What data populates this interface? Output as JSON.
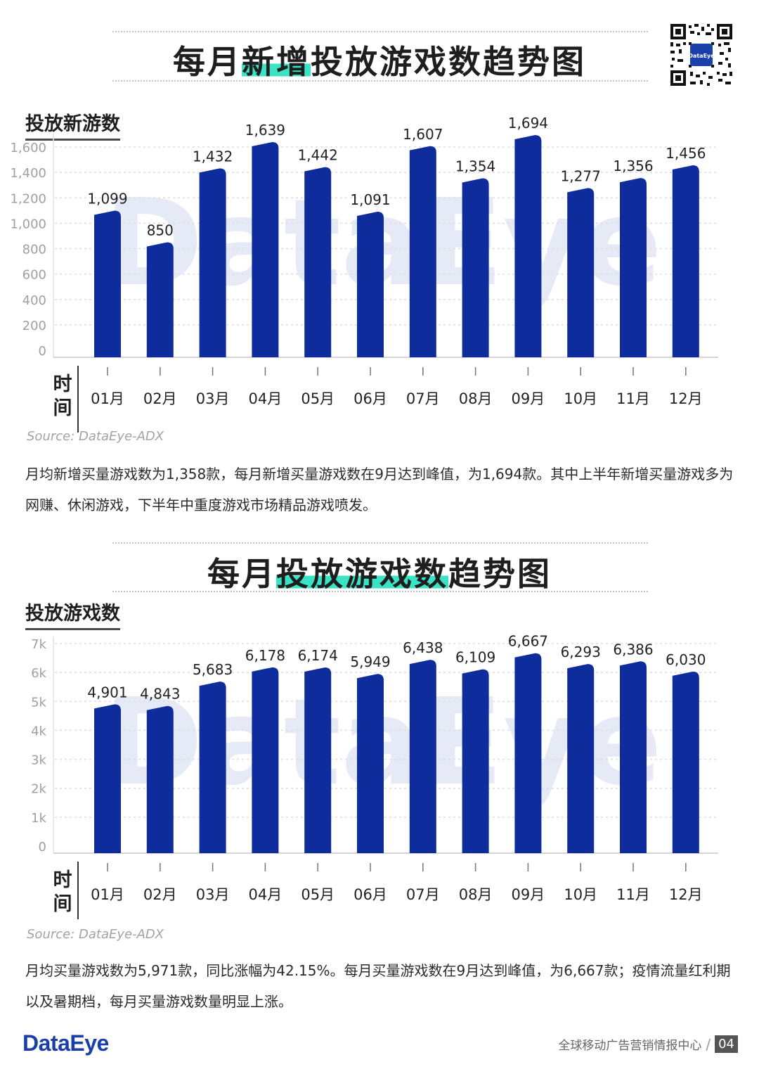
{
  "charts_header": {
    "top_title_pre": "每月",
    "top_title_hl": "新增",
    "top_title_post": "投放游戏数趋势图",
    "bottom_title_pre": "每月",
    "bottom_title_hl": "投放游戏数",
    "bottom_title_post": "趋势图"
  },
  "chart_data": [
    {
      "type": "bar",
      "title": "投放新游数",
      "xlabel": "时间",
      "ylabel": "",
      "categories": [
        "01月",
        "02月",
        "03月",
        "04月",
        "05月",
        "06月",
        "07月",
        "08月",
        "09月",
        "10月",
        "11月",
        "12月"
      ],
      "values": [
        1099,
        850,
        1432,
        1639,
        1442,
        1091,
        1607,
        1354,
        1694,
        1277,
        1356,
        1456
      ],
      "value_labels": [
        "1,099",
        "850",
        "1,432",
        "1,639",
        "1,442",
        "1,091",
        "1,607",
        "1,354",
        "1,694",
        "1,277",
        "1,356",
        "1,456"
      ],
      "yticks": [
        0,
        200,
        400,
        600,
        800,
        1000,
        1200,
        1400,
        1600
      ],
      "ytick_labels": [
        "0",
        "200",
        "400",
        "600",
        "800",
        "1,000",
        "1,200",
        "1,400",
        "1,600"
      ],
      "ylim": [
        0,
        1650
      ],
      "source": "Source: DataEye-ADX",
      "watermark": "DataEye"
    },
    {
      "type": "bar",
      "title": "投放游戏数",
      "xlabel": "时间",
      "ylabel": "",
      "categories": [
        "01月",
        "02月",
        "03月",
        "04月",
        "05月",
        "06月",
        "07月",
        "08月",
        "09月",
        "10月",
        "11月",
        "12月"
      ],
      "values": [
        4901,
        4843,
        5683,
        6178,
        6174,
        5949,
        6438,
        6109,
        6667,
        6293,
        6386,
        6030
      ],
      "value_labels": [
        "4,901",
        "4,843",
        "5,683",
        "6,178",
        "6,174",
        "5,949",
        "6,438",
        "6,109",
        "6,667",
        "6,293",
        "6,386",
        "6,030"
      ],
      "yticks": [
        0,
        1000,
        2000,
        3000,
        4000,
        5000,
        6000,
        7000
      ],
      "ytick_labels": [
        "0",
        "1k",
        "2k",
        "3k",
        "4k",
        "5k",
        "6k",
        "7k"
      ],
      "ylim": [
        0,
        7000
      ],
      "source": "Source: DataEye-ADX",
      "watermark": "DataEye"
    }
  ],
  "descriptions": {
    "chart1": "月均新增买量游戏数为1,358款，每月新增买量游戏数在9月达到峰值，为1,694款。其中上半年新增买量游戏多为网赚、休闲游戏，下半年中重度游戏市场精品游戏喷发。",
    "chart2": "月均买量游戏数为5,971款，同比涨幅为42.15%。每月买量游戏数在9月达到峰值，为6,667款；疫情流量红利期以及暑期档，每月买量游戏数量明显上涨。"
  },
  "footer": {
    "brand": "DataEye",
    "tagline": "全球移动广告营销情报中心",
    "page": "04"
  },
  "colors": {
    "bar": "#0f2c9c",
    "highlight": "#3be3c5",
    "grid": "#dddddd",
    "watermark": "#e6eaf7"
  },
  "icons": {
    "qr": "qr-code-icon"
  }
}
